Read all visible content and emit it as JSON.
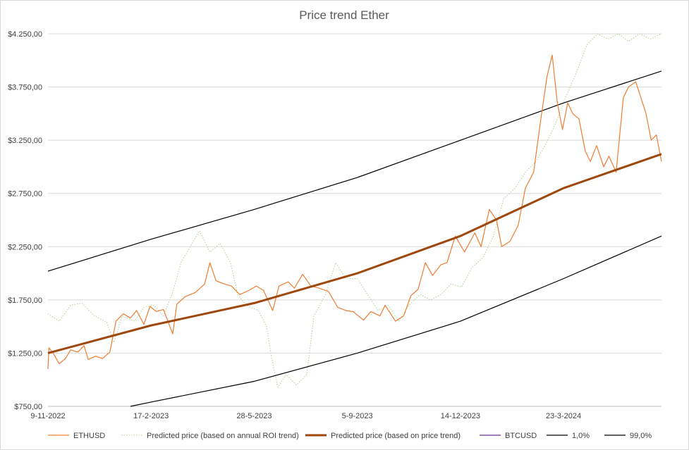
{
  "chart_data": {
    "type": "line",
    "title": "Price trend Ether",
    "xlabel": "",
    "ylabel": "",
    "x_ticks": [
      "9-11-2022",
      "17-2-2023",
      "28-5-2023",
      "5-9-2023",
      "14-12-2023",
      "23-3-2024"
    ],
    "x_range": [
      "2022-11-09",
      "2024-06-26"
    ],
    "y_ticks": [
      "$750,00",
      "$1.250,00",
      "$1.750,00",
      "$2.250,00",
      "$2.750,00",
      "$3.250,00",
      "$3.750,00",
      "$4.250,00"
    ],
    "ylim": [
      750,
      4250
    ],
    "grid": true,
    "legend_position": "bottom",
    "series": [
      {
        "name": "ETHUSD",
        "color": "#ED7D31",
        "style": "solid",
        "points": [
          [
            "2022-11-09",
            1100
          ],
          [
            "2022-11-10",
            1300
          ],
          [
            "2022-11-14",
            1250
          ],
          [
            "2022-11-20",
            1150
          ],
          [
            "2022-11-26",
            1200
          ],
          [
            "2022-12-01",
            1280
          ],
          [
            "2022-12-08",
            1260
          ],
          [
            "2022-12-14",
            1320
          ],
          [
            "2022-12-18",
            1190
          ],
          [
            "2022-12-25",
            1220
          ],
          [
            "2023-01-01",
            1200
          ],
          [
            "2023-01-08",
            1260
          ],
          [
            "2023-01-14",
            1550
          ],
          [
            "2023-01-21",
            1620
          ],
          [
            "2023-01-28",
            1580
          ],
          [
            "2023-02-03",
            1650
          ],
          [
            "2023-02-10",
            1520
          ],
          [
            "2023-02-16",
            1690
          ],
          [
            "2023-02-22",
            1640
          ],
          [
            "2023-03-01",
            1660
          ],
          [
            "2023-03-10",
            1430
          ],
          [
            "2023-03-14",
            1710
          ],
          [
            "2023-03-22",
            1780
          ],
          [
            "2023-04-01",
            1820
          ],
          [
            "2023-04-10",
            1900
          ],
          [
            "2023-04-15",
            2100
          ],
          [
            "2023-04-21",
            1930
          ],
          [
            "2023-04-29",
            1900
          ],
          [
            "2023-05-06",
            1880
          ],
          [
            "2023-05-14",
            1800
          ],
          [
            "2023-05-23",
            1840
          ],
          [
            "2023-05-30",
            1880
          ],
          [
            "2023-06-06",
            1840
          ],
          [
            "2023-06-15",
            1650
          ],
          [
            "2023-06-21",
            1880
          ],
          [
            "2023-06-30",
            1920
          ],
          [
            "2023-07-06",
            1860
          ],
          [
            "2023-07-14",
            1990
          ],
          [
            "2023-07-22",
            1880
          ],
          [
            "2023-07-30",
            1860
          ],
          [
            "2023-08-08",
            1830
          ],
          [
            "2023-08-17",
            1680
          ],
          [
            "2023-08-25",
            1650
          ],
          [
            "2023-09-01",
            1640
          ],
          [
            "2023-09-11",
            1560
          ],
          [
            "2023-09-18",
            1640
          ],
          [
            "2023-09-27",
            1600
          ],
          [
            "2023-10-02",
            1700
          ],
          [
            "2023-10-12",
            1550
          ],
          [
            "2023-10-20",
            1600
          ],
          [
            "2023-10-27",
            1790
          ],
          [
            "2023-11-03",
            1850
          ],
          [
            "2023-11-10",
            2100
          ],
          [
            "2023-11-17",
            1980
          ],
          [
            "2023-11-25",
            2080
          ],
          [
            "2023-12-01",
            2100
          ],
          [
            "2023-12-09",
            2350
          ],
          [
            "2023-12-18",
            2200
          ],
          [
            "2023-12-28",
            2380
          ],
          [
            "2024-01-03",
            2250
          ],
          [
            "2024-01-11",
            2600
          ],
          [
            "2024-01-18",
            2500
          ],
          [
            "2024-01-23",
            2250
          ],
          [
            "2024-01-31",
            2300
          ],
          [
            "2024-02-08",
            2450
          ],
          [
            "2024-02-15",
            2800
          ],
          [
            "2024-02-23",
            2950
          ],
          [
            "2024-03-01",
            3450
          ],
          [
            "2024-03-07",
            3850
          ],
          [
            "2024-03-12",
            4050
          ],
          [
            "2024-03-17",
            3600
          ],
          [
            "2024-03-22",
            3350
          ],
          [
            "2024-03-27",
            3600
          ],
          [
            "2024-04-01",
            3500
          ],
          [
            "2024-04-07",
            3450
          ],
          [
            "2024-04-13",
            3150
          ],
          [
            "2024-04-18",
            3050
          ],
          [
            "2024-04-24",
            3200
          ],
          [
            "2024-05-01",
            3000
          ],
          [
            "2024-05-06",
            3100
          ],
          [
            "2024-05-13",
            2950
          ],
          [
            "2024-05-20",
            3650
          ],
          [
            "2024-05-25",
            3750
          ],
          [
            "2024-06-01",
            3800
          ],
          [
            "2024-06-06",
            3650
          ],
          [
            "2024-06-11",
            3500
          ],
          [
            "2024-06-16",
            3250
          ],
          [
            "2024-06-21",
            3300
          ],
          [
            "2024-06-26",
            3050
          ]
        ]
      },
      {
        "name": "Predicted price (based on annual ROI trend)",
        "color": "#A9D18E",
        "style": "dotted",
        "points": [
          [
            "2022-11-09",
            1620
          ],
          [
            "2022-11-20",
            1550
          ],
          [
            "2022-12-01",
            1700
          ],
          [
            "2022-12-12",
            1720
          ],
          [
            "2022-12-24",
            1600
          ],
          [
            "2023-01-05",
            1540
          ],
          [
            "2023-01-12",
            1350
          ],
          [
            "2023-01-20",
            1600
          ],
          [
            "2023-02-01",
            1550
          ],
          [
            "2023-02-10",
            1680
          ],
          [
            "2023-02-20",
            1700
          ],
          [
            "2023-03-01",
            1600
          ],
          [
            "2023-03-10",
            1820
          ],
          [
            "2023-03-18",
            2100
          ],
          [
            "2023-03-27",
            2250
          ],
          [
            "2023-04-05",
            2400
          ],
          [
            "2023-04-15",
            2200
          ],
          [
            "2023-04-25",
            2280
          ],
          [
            "2023-05-05",
            2100
          ],
          [
            "2023-05-12",
            1800
          ],
          [
            "2023-05-20",
            1700
          ],
          [
            "2023-06-01",
            1650
          ],
          [
            "2023-06-09",
            1500
          ],
          [
            "2023-06-14",
            1200
          ],
          [
            "2023-06-20",
            930
          ],
          [
            "2023-06-28",
            1050
          ],
          [
            "2023-07-08",
            950
          ],
          [
            "2023-07-18",
            1050
          ],
          [
            "2023-07-25",
            1600
          ],
          [
            "2023-08-05",
            1800
          ],
          [
            "2023-08-15",
            2100
          ],
          [
            "2023-08-25",
            1950
          ],
          [
            "2023-09-05",
            1950
          ],
          [
            "2023-09-15",
            1800
          ],
          [
            "2023-09-25",
            1650
          ],
          [
            "2023-10-05",
            1700
          ],
          [
            "2023-10-15",
            1550
          ],
          [
            "2023-10-25",
            1700
          ],
          [
            "2023-11-05",
            1800
          ],
          [
            "2023-11-15",
            1750
          ],
          [
            "2023-11-25",
            1800
          ],
          [
            "2023-12-05",
            1900
          ],
          [
            "2023-12-15",
            1870
          ],
          [
            "2023-12-25",
            2050
          ],
          [
            "2024-01-05",
            2150
          ],
          [
            "2024-01-15",
            2350
          ],
          [
            "2024-01-25",
            2700
          ],
          [
            "2024-02-05",
            2800
          ],
          [
            "2024-02-15",
            2950
          ],
          [
            "2024-02-25",
            3050
          ],
          [
            "2024-03-05",
            3200
          ],
          [
            "2024-03-15",
            3400
          ],
          [
            "2024-03-25",
            3650
          ],
          [
            "2024-04-05",
            3900
          ],
          [
            "2024-04-15",
            4150
          ],
          [
            "2024-04-25",
            4250
          ],
          [
            "2024-05-05",
            4200
          ],
          [
            "2024-05-15",
            4250
          ],
          [
            "2024-05-25",
            4180
          ],
          [
            "2024-06-05",
            4250
          ],
          [
            "2024-06-15",
            4200
          ],
          [
            "2024-06-26",
            4250
          ]
        ]
      },
      {
        "name": "Predicted price (based on price trend)",
        "color": "#9E480E",
        "style": "solid-thick",
        "points": [
          [
            "2022-11-09",
            1250
          ],
          [
            "2023-02-17",
            1510
          ],
          [
            "2023-05-28",
            1720
          ],
          [
            "2023-09-05",
            2000
          ],
          [
            "2023-12-14",
            2350
          ],
          [
            "2024-03-23",
            2800
          ],
          [
            "2024-06-26",
            3120
          ]
        ]
      },
      {
        "name": "BTCUSD",
        "color": "#7030A0",
        "style": "solid",
        "points": []
      },
      {
        "name": "1,0%",
        "color": "#000000",
        "style": "solid-thin",
        "points": [
          [
            "2023-01-28",
            750
          ],
          [
            "2023-02-17",
            790
          ],
          [
            "2023-05-28",
            985
          ],
          [
            "2023-09-05",
            1250
          ],
          [
            "2023-12-14",
            1550
          ],
          [
            "2024-03-23",
            1950
          ],
          [
            "2024-06-26",
            2350
          ]
        ]
      },
      {
        "name": "99,0%",
        "color": "#000000",
        "style": "solid-thin",
        "points": [
          [
            "2022-11-09",
            2020
          ],
          [
            "2023-02-17",
            2320
          ],
          [
            "2023-05-28",
            2600
          ],
          [
            "2023-09-05",
            2900
          ],
          [
            "2023-12-14",
            3250
          ],
          [
            "2024-03-23",
            3600
          ],
          [
            "2024-06-26",
            3900
          ]
        ]
      }
    ]
  }
}
